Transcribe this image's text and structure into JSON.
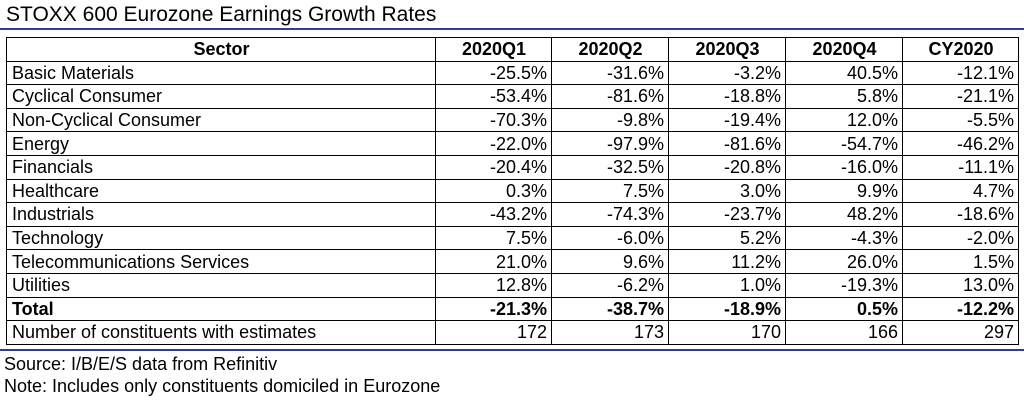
{
  "title": "STOXX 600 Eurozone Earnings Growth Rates",
  "headers": [
    "Sector",
    "2020Q1",
    "2020Q2",
    "2020Q3",
    "2020Q4",
    "CY2020"
  ],
  "rows": [
    {
      "sector": "Basic Materials",
      "values": [
        "-25.5%",
        "-31.6%",
        "-3.2%",
        "40.5%",
        "-12.1%"
      ]
    },
    {
      "sector": "Cyclical Consumer",
      "values": [
        "-53.4%",
        "-81.6%",
        "-18.8%",
        "5.8%",
        "-21.1%"
      ]
    },
    {
      "sector": "Non-Cyclical Consumer",
      "values": [
        "-70.3%",
        "-9.8%",
        "-19.4%",
        "12.0%",
        "-5.5%"
      ]
    },
    {
      "sector": "Energy",
      "values": [
        "-22.0%",
        "-97.9%",
        "-81.6%",
        "-54.7%",
        "-46.2%"
      ]
    },
    {
      "sector": "Financials",
      "values": [
        "-20.4%",
        "-32.5%",
        "-20.8%",
        "-16.0%",
        "-11.1%"
      ]
    },
    {
      "sector": "Healthcare",
      "values": [
        "0.3%",
        "7.5%",
        "3.0%",
        "9.9%",
        "4.7%"
      ]
    },
    {
      "sector": "Industrials",
      "values": [
        "-43.2%",
        "-74.3%",
        "-23.7%",
        "48.2%",
        "-18.6%"
      ]
    },
    {
      "sector": "Technology",
      "values": [
        "7.5%",
        "-6.0%",
        "5.2%",
        "-4.3%",
        "-2.0%"
      ]
    },
    {
      "sector": "Telecommunications Services",
      "values": [
        "21.0%",
        "9.6%",
        "11.2%",
        "26.0%",
        "1.5%"
      ]
    },
    {
      "sector": "Utilities",
      "values": [
        "12.8%",
        "-6.2%",
        "1.0%",
        "-19.3%",
        "13.0%"
      ]
    }
  ],
  "total": {
    "sector": "Total",
    "values": [
      "-21.3%",
      "-38.7%",
      "-18.9%",
      "0.5%",
      "-12.2%"
    ]
  },
  "constituents": {
    "sector": "Number of constituents with estimates",
    "values": [
      "172",
      "173",
      "170",
      "166",
      "297"
    ]
  },
  "source": "Source: I/B/E/S data from Refinitiv",
  "note": "Note: Includes only constituents domiciled in Eurozone",
  "colors": {
    "rule": "#2e3f8f"
  }
}
